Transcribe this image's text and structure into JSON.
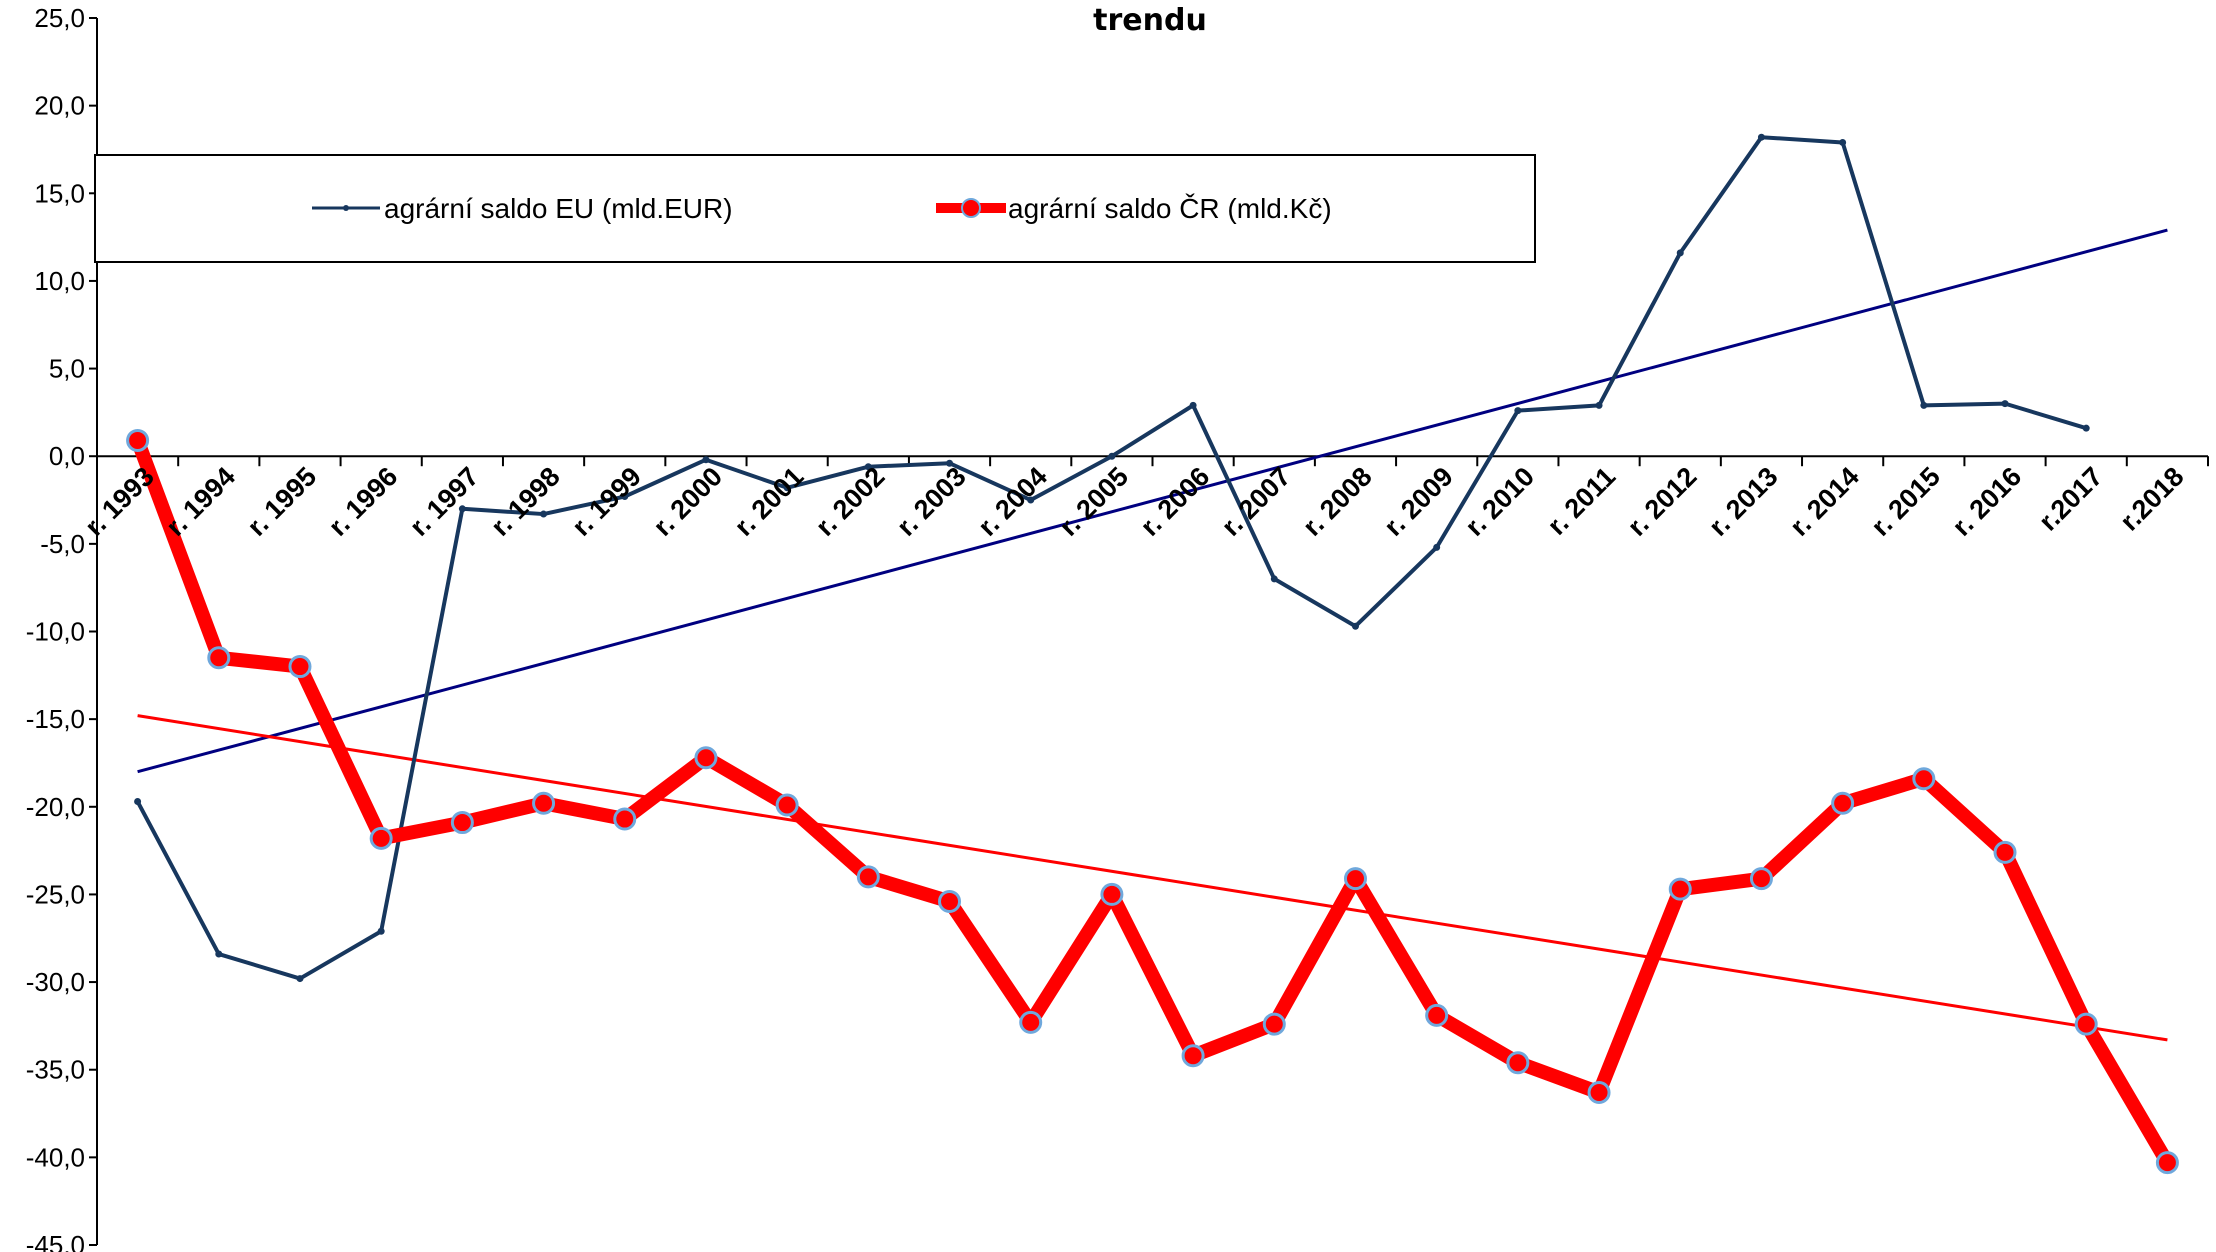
{
  "chart_data": {
    "type": "line",
    "title": "trendu",
    "ylim": [
      -45,
      25
    ],
    "yticks": [
      "25,0",
      "20,0",
      "15,0",
      "10,0",
      "5,0",
      "0,0",
      "-5,0",
      "-10,0",
      "-15,0",
      "-20,0",
      "-25,0",
      "-30,0",
      "-35,0",
      "-40,0",
      "-45,0"
    ],
    "categories": [
      "r. 1993",
      "r. 1994",
      "r. 1995",
      "r. 1996",
      "r. 1997",
      "r. 1998",
      "r. 1999",
      "r. 2000",
      "r. 2001",
      "r. 2002",
      "r. 2003",
      "r. 2004",
      "r. 2005",
      "r. 2006",
      "r. 2007",
      "r. 2008",
      "r. 2009",
      "r. 2010",
      "r. 2011",
      "r. 2012",
      "r. 2013",
      "r. 2014",
      "r. 2015",
      "r. 2016",
      "r.2017",
      "r.2018"
    ],
    "series": [
      {
        "name": "agrární saldo EU (mld.EUR)",
        "color": "#17375E",
        "values": [
          -19.7,
          -28.4,
          -29.8,
          -27.1,
          -3.0,
          -3.3,
          -2.3,
          -0.2,
          -1.8,
          -0.6,
          -0.4,
          -2.5,
          0.0,
          2.9,
          -7.0,
          -9.7,
          -5.2,
          2.6,
          2.9,
          11.6,
          18.2,
          17.9,
          2.9,
          3.0,
          1.6,
          null
        ]
      },
      {
        "name": "agrární saldo ČR (mld.Kč)",
        "color": "#FF0000",
        "values": [
          0.9,
          -11.5,
          -12.0,
          -21.8,
          -20.9,
          -19.8,
          -20.7,
          -17.2,
          -19.9,
          -24.0,
          -25.4,
          -32.3,
          -25.0,
          -34.2,
          -32.4,
          -24.1,
          -31.9,
          -34.6,
          -36.3,
          -24.7,
          -24.1,
          -19.8,
          -18.4,
          -22.6,
          -32.4,
          -40.3
        ]
      }
    ],
    "trendlines": [
      {
        "series": "agrární saldo EU (mld.EUR)",
        "color": "#000080",
        "start": -18.0,
        "end": 12.9
      },
      {
        "series": "agrární saldo ČR (mld.Kč)",
        "color": "#FF0000",
        "start": -14.8,
        "end": -33.3
      }
    ],
    "legend_position": "top-left"
  }
}
